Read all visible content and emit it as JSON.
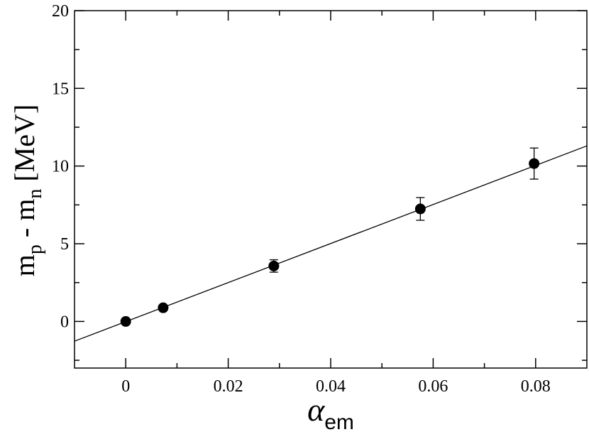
{
  "chart_data": {
    "type": "scatter",
    "xlabel": {
      "main": "α",
      "sub": "em"
    },
    "ylabel": {
      "parts": [
        "m",
        "p",
        " - m",
        "n",
        " [MeV]"
      ]
    },
    "xlim": [
      -0.01,
      0.09
    ],
    "ylim": [
      -3,
      20
    ],
    "x_ticks": [
      0,
      0.02,
      0.04,
      0.06,
      0.08
    ],
    "x_tick_labels": [
      "0",
      "0.02",
      "0.04",
      "0.06",
      "0.08"
    ],
    "y_ticks": [
      0,
      5,
      10,
      15,
      20
    ],
    "y_tick_labels": [
      "0",
      "5",
      "10",
      "15",
      "20"
    ],
    "grid": false,
    "series": [
      {
        "type": "scatter",
        "points": [
          {
            "x": 0.0,
            "y": 0.0,
            "yerr": 0
          },
          {
            "x": 0.0073,
            "y": 0.88,
            "yerr": 0
          },
          {
            "x": 0.0289,
            "y": 3.57,
            "yerr": 0.4
          },
          {
            "x": 0.0575,
            "y": 7.24,
            "yerr": 0.73
          },
          {
            "x": 0.0797,
            "y": 10.16,
            "yerr": 1.0
          }
        ]
      },
      {
        "type": "line",
        "points": [
          {
            "x": -0.01,
            "y": -1.27
          },
          {
            "x": 0.09,
            "y": 11.3
          }
        ]
      }
    ]
  }
}
